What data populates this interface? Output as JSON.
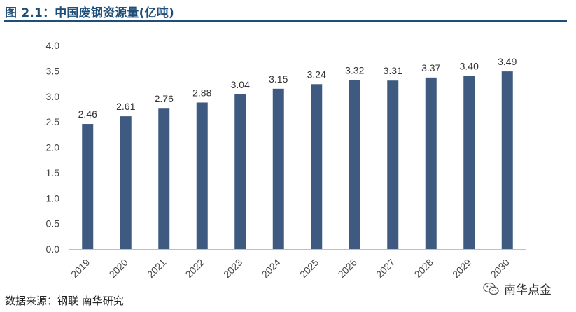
{
  "title": "图 2.1：中国废钢资源量(亿吨)",
  "source": "数据来源：钢联 南华研究",
  "watermark": {
    "text": "南华点金",
    "icon": "wechat-icon"
  },
  "colors": {
    "bar": "#3f5a80",
    "title": "#1f4e79",
    "axis": "#bfbfbf"
  },
  "chart_data": {
    "type": "bar",
    "categories": [
      "2019",
      "2020",
      "2021",
      "2022",
      "2023",
      "2024",
      "2025",
      "2026",
      "2027",
      "2028",
      "2029",
      "2030"
    ],
    "values": [
      2.46,
      2.61,
      2.76,
      2.88,
      3.04,
      3.15,
      3.24,
      3.32,
      3.31,
      3.37,
      3.4,
      3.49
    ],
    "value_labels": [
      "2.46",
      "2.61",
      "2.76",
      "2.88",
      "3.04",
      "3.15",
      "3.24",
      "3.32",
      "3.31",
      "3.37",
      "3.40",
      "3.49"
    ],
    "yticks": [
      "0.0",
      "0.5",
      "1.0",
      "1.5",
      "2.0",
      "2.5",
      "3.0",
      "3.5",
      "4.0"
    ],
    "ylim": [
      0,
      4
    ],
    "grid": false,
    "legend": "none",
    "xlabel": "",
    "ylabel": ""
  }
}
